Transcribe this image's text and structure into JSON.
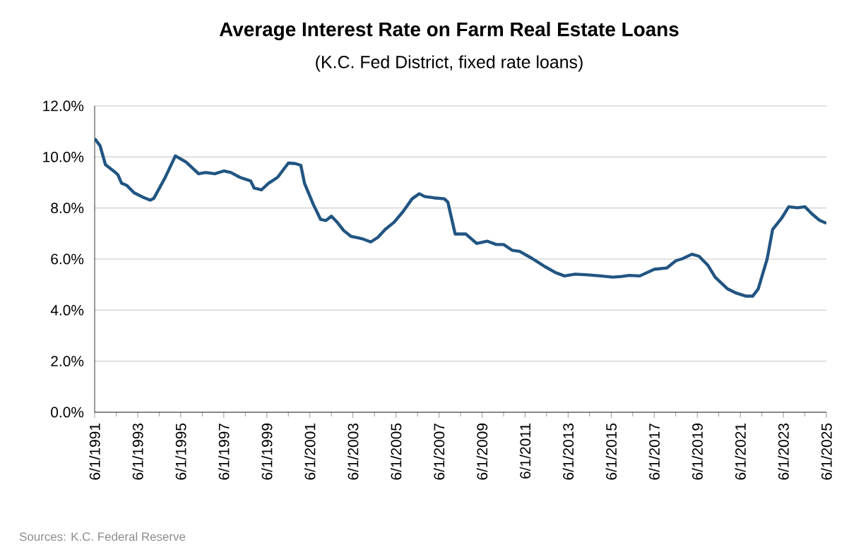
{
  "chart_data": {
    "type": "line",
    "title": "Average Interest Rate on Farm Real Estate Loans",
    "subtitle": "(K.C. Fed District, fixed rate loans)",
    "annotations": [
      "Sources: K.C. Federal Reserve"
    ],
    "x": [
      "1991-06",
      "1991-09",
      "1991-12",
      "1992-05",
      "1992-07",
      "1992-09",
      "1992-12",
      "1993-04",
      "1993-09",
      "1994-01",
      "1994-03",
      "1994-09",
      "1995-03",
      "1995-09",
      "1996-04",
      "1996-08",
      "1997-01",
      "1997-06",
      "1997-10",
      "1998-03",
      "1998-09",
      "1998-11",
      "1999-03",
      "1999-07",
      "1999-12",
      "2000-06",
      "2000-10",
      "2001-01",
      "2001-03",
      "2001-08",
      "2001-12",
      "2002-03",
      "2002-06",
      "2002-09",
      "2003-01",
      "2003-05",
      "2003-11",
      "2004-04",
      "2004-08",
      "2004-12",
      "2005-05",
      "2005-10",
      "2006-03",
      "2006-07",
      "2006-10",
      "2007-03",
      "2007-09",
      "2007-11",
      "2008-03",
      "2008-09",
      "2009-03",
      "2009-09",
      "2010-02",
      "2010-06",
      "2010-11",
      "2011-03",
      "2011-10",
      "2012-05",
      "2012-11",
      "2013-04",
      "2013-10",
      "2014-05",
      "2014-12",
      "2015-07",
      "2015-12",
      "2016-04",
      "2016-10",
      "2017-06",
      "2018-01",
      "2018-06",
      "2018-10",
      "2019-03",
      "2019-07",
      "2019-12",
      "2020-04",
      "2020-11",
      "2021-04",
      "2021-09",
      "2022-01",
      "2022-04",
      "2022-09",
      "2022-12",
      "2023-05",
      "2023-09",
      "2024-02",
      "2024-06",
      "2024-10",
      "2025-02",
      "2025-06"
    ],
    "series": [
      {
        "color": "#215582",
        "values": [
          10.72,
          10.44,
          9.7,
          9.43,
          9.3,
          8.97,
          8.88,
          8.6,
          8.42,
          8.31,
          8.38,
          9.15,
          10.04,
          9.8,
          9.34,
          9.39,
          9.34,
          9.45,
          9.39,
          9.2,
          9.06,
          8.78,
          8.71,
          8.97,
          9.2,
          9.76,
          9.74,
          9.67,
          8.97,
          8.14,
          7.55,
          7.51,
          7.68,
          7.46,
          7.11,
          6.89,
          6.8,
          6.67,
          6.85,
          7.16,
          7.44,
          7.86,
          8.36,
          8.56,
          8.45,
          8.4,
          8.36,
          8.23,
          6.98,
          6.98,
          6.61,
          6.7,
          6.57,
          6.57,
          6.34,
          6.3,
          6.02,
          5.71,
          5.47,
          5.34,
          5.41,
          5.38,
          5.34,
          5.29,
          5.32,
          5.36,
          5.34,
          5.6,
          5.65,
          5.93,
          6.02,
          6.19,
          6.11,
          5.75,
          5.29,
          4.83,
          4.66,
          4.55,
          4.55,
          4.83,
          6.02,
          7.16,
          7.59,
          8.05,
          8.01,
          8.05,
          7.77,
          7.53,
          7.4
        ]
      }
    ],
    "xlim": [
      "1991-06",
      "2025-06"
    ],
    "xticks": [
      {
        "value": "1991-06",
        "label": "6/1/1991"
      },
      {
        "value": "1993-06",
        "label": "6/1/1993"
      },
      {
        "value": "1995-06",
        "label": "6/1/1995"
      },
      {
        "value": "1997-06",
        "label": "6/1/1997"
      },
      {
        "value": "1999-06",
        "label": "6/1/1999"
      },
      {
        "value": "2001-06",
        "label": "6/1/2001"
      },
      {
        "value": "2003-06",
        "label": "6/1/2003"
      },
      {
        "value": "2005-06",
        "label": "6/1/2005"
      },
      {
        "value": "2007-06",
        "label": "6/1/2007"
      },
      {
        "value": "2009-06",
        "label": "6/1/2009"
      },
      {
        "value": "2011-06",
        "label": "6/1/2011"
      },
      {
        "value": "2013-06",
        "label": "6/1/2013"
      },
      {
        "value": "2015-06",
        "label": "6/1/2015"
      },
      {
        "value": "2017-06",
        "label": "6/1/2017"
      },
      {
        "value": "2019-06",
        "label": "6/1/2019"
      },
      {
        "value": "2021-06",
        "label": "6/1/2021"
      },
      {
        "value": "2023-06",
        "label": "6/1/2023"
      },
      {
        "value": "2025-06",
        "label": "6/1/2025"
      }
    ],
    "ylim": [
      0,
      12
    ],
    "yticks": [
      {
        "value": 0,
        "label": "0.0%"
      },
      {
        "value": 2,
        "label": "2.0%"
      },
      {
        "value": 4,
        "label": "4.0%"
      },
      {
        "value": 6,
        "label": "6.0%"
      },
      {
        "value": 8,
        "label": "8.0%"
      },
      {
        "value": 10,
        "label": "10.0%"
      },
      {
        "value": 12,
        "label": "12.0%"
      }
    ],
    "grid": "y",
    "legend": false,
    "marker": "none",
    "line_style": "solid"
  }
}
